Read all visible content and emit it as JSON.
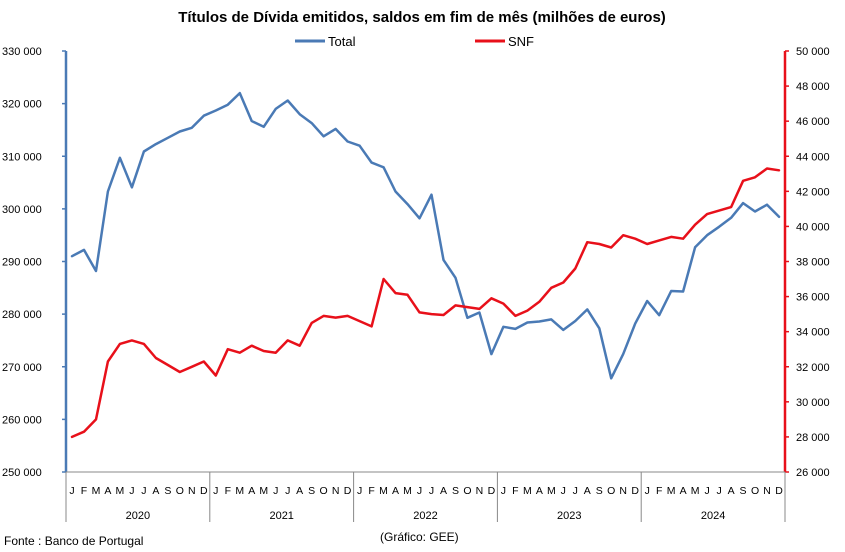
{
  "chart_data": {
    "type": "line",
    "title": "Títulos de Dívida emitidos, saldos em fim de mês  (milhões de euros)",
    "source": "Fonte : Banco de Portugal",
    "credit": "(Gráfico: GEE)",
    "month_labels": [
      "J",
      "F",
      "M",
      "A",
      "M",
      "J",
      "J",
      "A",
      "S",
      "O",
      "N",
      "D",
      "J",
      "F",
      "M",
      "A",
      "M",
      "J",
      "J",
      "A",
      "S",
      "O",
      "N",
      "D",
      "J",
      "F",
      "M",
      "A",
      "M",
      "J",
      "J",
      "A",
      "S",
      "O",
      "N",
      "D",
      "J",
      "F",
      "M",
      "A",
      "M",
      "J",
      "J",
      "A",
      "S",
      "O",
      "N",
      "D",
      "J",
      "F",
      "M",
      "A",
      "M",
      "J",
      "J",
      "A",
      "S",
      "O",
      "N",
      "D"
    ],
    "years": [
      "2020",
      "2021",
      "2022",
      "2023",
      "2024"
    ],
    "left_axis": {
      "min": 250000,
      "max": 330000,
      "ticks": [
        "250 000",
        "260 000",
        "270 000",
        "280 000",
        "290 000",
        "300 000",
        "310 000",
        "320 000",
        "330 000"
      ]
    },
    "right_axis": {
      "min": 26000,
      "max": 50000,
      "ticks": [
        "26 000",
        "28 000",
        "30 000",
        "32 000",
        "34 000",
        "36 000",
        "38 000",
        "40 000",
        "42 000",
        "44 000",
        "46 000",
        "48 000",
        "50 000"
      ]
    },
    "series": [
      {
        "name": "Total",
        "axis": "left",
        "color": "#4a7ab5",
        "values": [
          291000,
          292200,
          288200,
          303300,
          309700,
          304100,
          310900,
          312300,
          313500,
          314700,
          315400,
          317700,
          318700,
          319800,
          322000,
          316700,
          315600,
          319000,
          320600,
          318000,
          316300,
          313800,
          315200,
          312800,
          312000,
          308800,
          307900,
          303300,
          300900,
          298200,
          302700,
          290300,
          286900,
          279300,
          280300,
          272400,
          277600,
          277200,
          278400,
          278600,
          279000,
          277000,
          278700,
          280900,
          277300,
          267800,
          272400,
          278200,
          282500,
          279800,
          284400,
          284300,
          292700,
          295000,
          296600,
          298300,
          301100,
          299500,
          300800,
          298500
        ]
      },
      {
        "name": "SNF",
        "axis": "right",
        "color": "#e8101a",
        "values": [
          28000,
          28300,
          29000,
          32300,
          33300,
          33500,
          33300,
          32500,
          32100,
          31700,
          32000,
          32300,
          31500,
          33000,
          32800,
          33200,
          32900,
          32800,
          33500,
          33200,
          34500,
          34900,
          34800,
          34900,
          34600,
          34300,
          37000,
          36200,
          36100,
          35100,
          35000,
          34950,
          35500,
          35400,
          35300,
          35900,
          35600,
          34900,
          35200,
          35700,
          36500,
          36800,
          37600,
          39100,
          39000,
          38800,
          39500,
          39300,
          39000,
          39200,
          39400,
          39300,
          40100,
          40700,
          40900,
          41100,
          42600,
          42800,
          43300,
          43200
        ]
      }
    ]
  }
}
